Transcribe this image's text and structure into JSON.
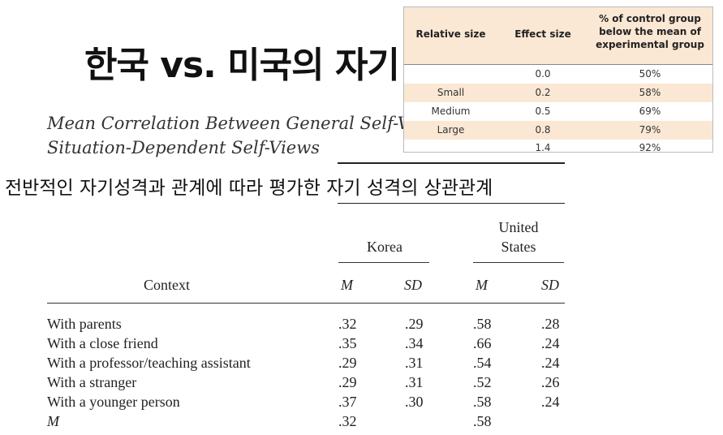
{
  "slide_title": "한국 vs. 미국의 자기",
  "caption": {
    "line1": "Mean Correlation Between General Self-Vie",
    "line2": "Situation-Dependent Self-Views"
  },
  "korean_subtitle": "전반적인 자기성격과 관계에 따라 평가한 자기 성격의 상관관계",
  "main_table": {
    "group1": "Korea",
    "group2_line1": "United",
    "group2_line2": "States",
    "context_header": "Context",
    "stat_headers": [
      "M",
      "SD",
      "M",
      "SD"
    ],
    "rows": [
      {
        "context": "With parents",
        "k_m": ".32",
        "k_sd": ".29",
        "us_m": ".58",
        "us_sd": ".28"
      },
      {
        "context": "With a close friend",
        "k_m": ".35",
        "k_sd": ".34",
        "us_m": ".66",
        "us_sd": ".24"
      },
      {
        "context": "With a professor/teaching assistant",
        "k_m": ".29",
        "k_sd": ".31",
        "us_m": ".54",
        "us_sd": ".24"
      },
      {
        "context": "With a stranger",
        "k_m": ".29",
        "k_sd": ".31",
        "us_m": ".52",
        "us_sd": ".26"
      },
      {
        "context": "With a younger person",
        "k_m": ".37",
        "k_sd": ".30",
        "us_m": ".58",
        "us_sd": ".24"
      },
      {
        "context": "M",
        "k_m": ".32",
        "k_sd": "",
        "us_m": ".58",
        "us_sd": ""
      }
    ]
  },
  "effect_table": {
    "headers": [
      "Relative size",
      "Effect size",
      "% of control group below the mean of experimental group"
    ],
    "header_color": "#fbe8d4",
    "rows": [
      {
        "relative": "",
        "effect": "0.0",
        "pct": "50%"
      },
      {
        "relative": "Small",
        "effect": "0.2",
        "pct": "58%"
      },
      {
        "relative": "Medium",
        "effect": "0.5",
        "pct": "69%"
      },
      {
        "relative": "Large",
        "effect": "0.8",
        "pct": "79%"
      },
      {
        "relative": "",
        "effect": "1.4",
        "pct": "92%"
      }
    ]
  }
}
